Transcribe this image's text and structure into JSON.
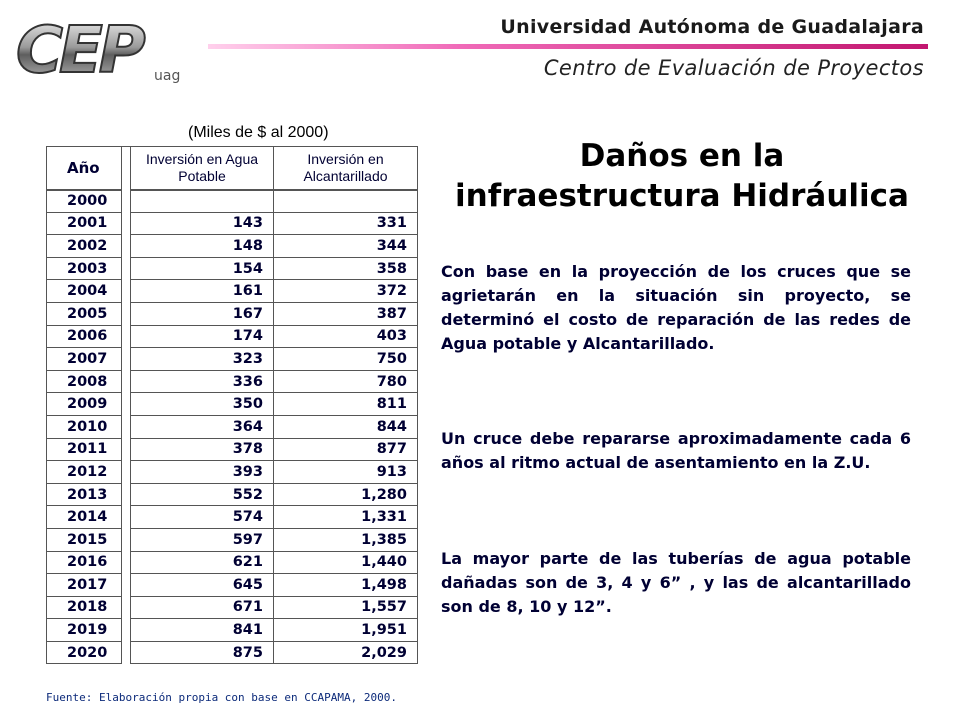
{
  "header": {
    "university": "Universidad Autónoma de Guadalajara",
    "center": "Centro de Evaluación de Proyectos",
    "logo_main": "CEP",
    "logo_sub": "uag"
  },
  "table": {
    "units": "(Miles de $ al 2000)",
    "col_year": "Año",
    "col_water_1": "Inversión en Agua",
    "col_water_2": "Potable",
    "col_sewer_1": "Inversión en",
    "col_sewer_2": "Alcantarillado",
    "rows": [
      {
        "year": "2000",
        "water": "",
        "sewer": ""
      },
      {
        "year": "2001",
        "water": "143",
        "sewer": "331"
      },
      {
        "year": "2002",
        "water": "148",
        "sewer": "344"
      },
      {
        "year": "2003",
        "water": "154",
        "sewer": "358"
      },
      {
        "year": "2004",
        "water": "161",
        "sewer": "372"
      },
      {
        "year": "2005",
        "water": "167",
        "sewer": "387"
      },
      {
        "year": "2006",
        "water": "174",
        "sewer": "403"
      },
      {
        "year": "2007",
        "water": "323",
        "sewer": "750"
      },
      {
        "year": "2008",
        "water": "336",
        "sewer": "780"
      },
      {
        "year": "2009",
        "water": "350",
        "sewer": "811"
      },
      {
        "year": "2010",
        "water": "364",
        "sewer": "844"
      },
      {
        "year": "2011",
        "water": "378",
        "sewer": "877"
      },
      {
        "year": "2012",
        "water": "393",
        "sewer": "913"
      },
      {
        "year": "2013",
        "water": "552",
        "sewer": "1,280"
      },
      {
        "year": "2014",
        "water": "574",
        "sewer": "1,331"
      },
      {
        "year": "2015",
        "water": "597",
        "sewer": "1,385"
      },
      {
        "year": "2016",
        "water": "621",
        "sewer": "1,440"
      },
      {
        "year": "2017",
        "water": "645",
        "sewer": "1,498"
      },
      {
        "year": "2018",
        "water": "671",
        "sewer": "1,557"
      },
      {
        "year": "2019",
        "water": "841",
        "sewer": "1,951"
      },
      {
        "year": "2020",
        "water": "875",
        "sewer": "2,029"
      }
    ]
  },
  "title_line1": "Daños en la",
  "title_line2": "infraestructura Hidráulica",
  "paragraphs": [
    "Con base en la proyección de los cruces que se agrietarán en la situación sin proyecto, se determinó el costo de reparación de las redes de Agua potable y Alcantarillado.",
    "Un cruce debe repararse aproximadamente cada 6 años al ritmo actual de asentamiento en la Z.U.",
    "La mayor parte de las tuberías de agua potable dañadas son de 3, 4 y 6” , y las de alcantarillado son de 8, 10 y 12”."
  ],
  "source": "Fuente: Elaboración propia con base en CCAPAMA, 2000.",
  "colors": {
    "accent_bar": "#c2166f",
    "text_navy": "#000033",
    "source_blue": "#0c2a7a"
  }
}
